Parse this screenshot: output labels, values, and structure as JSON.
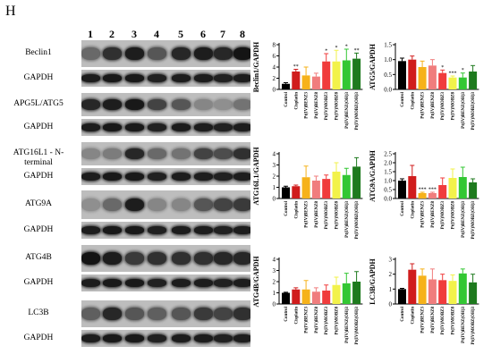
{
  "panel_letter": "H",
  "lanes": [
    "1",
    "2",
    "3",
    "4",
    "5",
    "6",
    "7",
    "8"
  ],
  "blots": [
    {
      "label": "Beclin1",
      "intensities": [
        0.5,
        0.8,
        0.9,
        0.6,
        0.85,
        0.9,
        0.85,
        0.95
      ]
    },
    {
      "label": "GAPDH",
      "intensities": [
        0.9,
        0.92,
        0.92,
        0.88,
        0.9,
        0.9,
        0.88,
        0.9
      ]
    },
    {
      "label": "APG5L/ATG5",
      "intensities": [
        0.85,
        0.9,
        0.92,
        0.7,
        0.6,
        0.35,
        0.3,
        0.45
      ]
    },
    {
      "label": "GAPDH",
      "intensities": [
        0.9,
        0.92,
        0.92,
        0.88,
        0.9,
        0.9,
        0.88,
        0.9
      ]
    },
    {
      "label": "ATG16L1 - N-terminal",
      "intensities": [
        0.35,
        0.4,
        0.85,
        0.5,
        0.45,
        0.7,
        0.65,
        0.8
      ]
    },
    {
      "label": "GAPDH",
      "intensities": [
        0.9,
        0.92,
        0.92,
        0.88,
        0.9,
        0.9,
        0.88,
        0.9
      ]
    },
    {
      "label": "ATG9A",
      "intensities": [
        0.3,
        0.5,
        0.9,
        0.35,
        0.35,
        0.6,
        0.7,
        0.75
      ]
    },
    {
      "label": "GAPDH",
      "intensities": [
        0.9,
        0.92,
        0.92,
        0.88,
        0.9,
        0.9,
        0.88,
        0.9
      ]
    },
    {
      "label": "ATG4B",
      "intensities": [
        0.95,
        0.9,
        0.75,
        0.8,
        0.8,
        0.8,
        0.85,
        0.85
      ]
    },
    {
      "label": "GAPDH",
      "intensities": [
        0.9,
        0.92,
        0.92,
        0.88,
        0.9,
        0.9,
        0.88,
        0.9
      ]
    },
    {
      "label": "LC3B",
      "intensities": [
        0.55,
        0.85,
        0.6,
        0.55,
        0.6,
        0.75,
        0.7,
        0.8
      ]
    },
    {
      "label": "GAPDH",
      "intensities": [
        0.9,
        0.92,
        0.92,
        0.88,
        0.9,
        0.9,
        0.88,
        0.9
      ]
    }
  ],
  "chart_data": [
    {
      "type": "bar",
      "ylabel": "Beclin1/GAPDH",
      "ylim": [
        0,
        8
      ],
      "yticks": [
        "0",
        "2",
        "4",
        "6",
        "8"
      ],
      "values": [
        1.0,
        3.2,
        2.5,
        2.3,
        5.0,
        5.0,
        5.2,
        5.5
      ],
      "errors": [
        0.2,
        0.4,
        1.5,
        0.6,
        1.4,
        2.0,
        2.0,
        1.0
      ],
      "sig": [
        "",
        "**",
        "",
        "",
        "*",
        "*",
        "*",
        "**"
      ]
    },
    {
      "type": "bar",
      "ylabel": "ATG5/GAPDH",
      "ylim": [
        0,
        1.5
      ],
      "yticks": [
        "0.0",
        "0.5",
        "1.0",
        "1.5"
      ],
      "values": [
        0.95,
        1.0,
        0.75,
        0.8,
        0.55,
        0.4,
        0.4,
        0.6
      ],
      "errors": [
        0.1,
        0.12,
        0.2,
        0.2,
        0.1,
        0.05,
        0.15,
        0.2
      ],
      "sig": [
        "",
        "",
        "",
        "",
        "*",
        "***",
        "*",
        ""
      ]
    },
    {
      "type": "bar",
      "ylabel": "ATG16L1/GAPDH",
      "ylim": [
        0,
        4
      ],
      "yticks": [
        "0",
        "1",
        "2",
        "3",
        "4"
      ],
      "values": [
        1.0,
        1.1,
        1.9,
        1.6,
        1.75,
        2.4,
        2.1,
        2.85
      ],
      "errors": [
        0.1,
        0.1,
        1.0,
        0.4,
        0.35,
        0.8,
        0.6,
        0.8
      ],
      "sig": [
        "",
        "",
        "",
        "",
        "",
        "",
        "",
        ""
      ]
    },
    {
      "type": "bar",
      "ylabel": "ATG9A/GAPDH",
      "ylim": [
        0,
        2.5
      ],
      "yticks": [
        "0.0",
        "0.5",
        "1.0",
        "1.5",
        "2.0",
        "2.5"
      ],
      "values": [
        1.0,
        1.25,
        0.3,
        0.3,
        0.75,
        1.15,
        1.2,
        0.9
      ],
      "errors": [
        0.1,
        0.6,
        0.05,
        0.05,
        0.4,
        0.5,
        0.55,
        0.2
      ],
      "sig": [
        "",
        "",
        "***",
        "***",
        "",
        "",
        "",
        ""
      ]
    },
    {
      "type": "bar",
      "ylabel": "ATG4B/GAPDH",
      "ylim": [
        0,
        4
      ],
      "yticks": [
        "0",
        "1",
        "2",
        "3",
        "4"
      ],
      "values": [
        1.0,
        1.3,
        1.3,
        1.1,
        1.2,
        1.7,
        1.85,
        2.0
      ],
      "errors": [
        0.05,
        0.15,
        0.8,
        0.35,
        0.5,
        0.7,
        0.9,
        0.9
      ],
      "sig": [
        "",
        "",
        "",
        "",
        "",
        "",
        "",
        ""
      ]
    },
    {
      "type": "bar",
      "ylabel": "LC3B/GAPDH",
      "ylim": [
        0,
        3
      ],
      "yticks": [
        "0",
        "1",
        "2",
        "3"
      ],
      "values": [
        1.0,
        2.3,
        1.9,
        1.65,
        1.6,
        1.55,
        2.05,
        1.45
      ],
      "errors": [
        0.05,
        0.4,
        0.45,
        0.7,
        0.4,
        0.4,
        0.3,
        0.55
      ],
      "sig": [
        "",
        "",
        "",
        "",
        "",
        "",
        "",
        ""
      ]
    }
  ],
  "groups": [
    "Control",
    "Cisplatin",
    "Pt(IV)BENZ3",
    "Pt(IV)BENZ8",
    "Pt(IV)MOBZ3",
    "Pt(IV)MOBZ8",
    "Pt(IV)BENZ(OH)3",
    "Pt(IV)MOBZ(OH)3"
  ],
  "colors": [
    "#000000",
    "#d01c1c",
    "#f6b21a",
    "#f07d7d",
    "#f03c3c",
    "#f2f24a",
    "#33c733",
    "#1e7a1e"
  ]
}
